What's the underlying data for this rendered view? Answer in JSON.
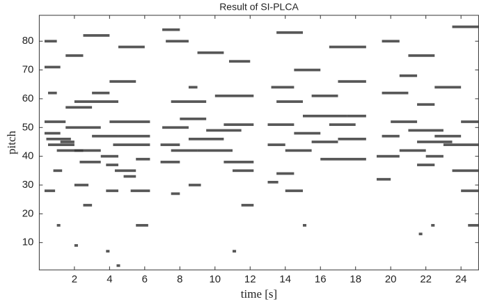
{
  "chart_data": {
    "type": "piano-roll",
    "title": "Result of SI-PLCA",
    "xlabel": "time [s]",
    "ylabel": "pitch",
    "xlim": [
      0,
      25
    ],
    "ylim": [
      0.5,
      89
    ],
    "xticks": [
      2,
      4,
      6,
      8,
      10,
      12,
      14,
      16,
      18,
      20,
      22,
      24
    ],
    "yticks": [
      10,
      20,
      30,
      40,
      50,
      60,
      70,
      80
    ],
    "color": "#3a3a3a",
    "notes": [
      [
        0.3,
        1.5,
        52
      ],
      [
        0.3,
        1.2,
        48
      ],
      [
        0.5,
        2.0,
        44
      ],
      [
        0.4,
        1.8,
        46
      ],
      [
        1.0,
        2.5,
        42
      ],
      [
        1.5,
        3.5,
        50
      ],
      [
        2.0,
        3.5,
        42
      ],
      [
        2.3,
        3.5,
        38
      ],
      [
        0.8,
        1.3,
        35
      ],
      [
        1.2,
        2.0,
        45
      ],
      [
        3.0,
        4.5,
        47
      ],
      [
        3.5,
        4.5,
        40
      ],
      [
        3.8,
        4.5,
        37
      ],
      [
        4.3,
        5.5,
        35
      ],
      [
        4.8,
        5.5,
        33
      ],
      [
        4.0,
        6.3,
        52
      ],
      [
        4.5,
        6.3,
        47
      ],
      [
        4.2,
        6.3,
        44
      ],
      [
        5.5,
        6.3,
        39
      ],
      [
        5.2,
        6.3,
        28
      ],
      [
        2.0,
        2.8,
        30
      ],
      [
        0.3,
        0.9,
        28
      ],
      [
        2.5,
        3.0,
        23
      ],
      [
        3.8,
        4.5,
        28
      ],
      [
        1.5,
        3.0,
        57
      ],
      [
        2.0,
        4.5,
        59
      ],
      [
        3.0,
        4.0,
        62
      ],
      [
        0.5,
        1.0,
        62
      ],
      [
        0.3,
        1.0,
        80
      ],
      [
        1.5,
        2.5,
        75
      ],
      [
        2.5,
        4.0,
        82
      ],
      [
        4.5,
        6.0,
        78
      ],
      [
        0.3,
        1.2,
        71
      ],
      [
        4.0,
        5.5,
        66
      ],
      [
        6.9,
        8.0,
        44
      ],
      [
        6.9,
        8.0,
        38
      ],
      [
        7.0,
        8.5,
        50
      ],
      [
        7.5,
        9.0,
        42
      ],
      [
        8.0,
        9.5,
        53
      ],
      [
        8.5,
        10.5,
        46
      ],
      [
        9.0,
        11.0,
        42
      ],
      [
        9.5,
        11.5,
        49
      ],
      [
        10.5,
        12.2,
        51
      ],
      [
        10.5,
        12.2,
        38
      ],
      [
        11.0,
        12.2,
        35
      ],
      [
        8.5,
        9.2,
        30
      ],
      [
        7.5,
        8.0,
        27
      ],
      [
        11.5,
        12.2,
        23
      ],
      [
        7.5,
        9.5,
        59
      ],
      [
        10.0,
        12.2,
        61
      ],
      [
        8.5,
        9.0,
        64
      ],
      [
        7.2,
        8.5,
        80
      ],
      [
        9.0,
        10.5,
        76
      ],
      [
        10.8,
        12.0,
        73
      ],
      [
        7.0,
        8.0,
        84
      ],
      [
        13.0,
        14.5,
        51
      ],
      [
        13.0,
        14.0,
        44
      ],
      [
        13.0,
        13.6,
        31
      ],
      [
        13.5,
        14.5,
        34
      ],
      [
        14.0,
        15.5,
        42
      ],
      [
        14.5,
        16.0,
        48
      ],
      [
        15.0,
        17.5,
        54
      ],
      [
        15.5,
        17.0,
        45
      ],
      [
        16.0,
        18.6,
        39
      ],
      [
        16.5,
        18.0,
        51
      ],
      [
        17.0,
        18.6,
        46
      ],
      [
        17.5,
        18.6,
        54
      ],
      [
        14.0,
        15.0,
        28
      ],
      [
        13.5,
        15.0,
        59
      ],
      [
        15.5,
        17.0,
        61
      ],
      [
        13.2,
        14.5,
        64
      ],
      [
        14.5,
        16.0,
        70
      ],
      [
        16.5,
        18.6,
        78
      ],
      [
        13.5,
        15.0,
        83
      ],
      [
        17.0,
        18.6,
        66
      ],
      [
        19.2,
        20.0,
        32
      ],
      [
        19.2,
        20.5,
        40
      ],
      [
        19.5,
        20.5,
        47
      ],
      [
        20.0,
        21.5,
        52
      ],
      [
        20.5,
        22.0,
        42
      ],
      [
        21.0,
        23.0,
        49
      ],
      [
        21.5,
        23.5,
        45
      ],
      [
        22.0,
        23.0,
        40
      ],
      [
        22.5,
        24.0,
        47
      ],
      [
        23.0,
        25.0,
        44
      ],
      [
        23.5,
        25.0,
        35
      ],
      [
        24.0,
        25.0,
        52
      ],
      [
        21.5,
        22.5,
        37
      ],
      [
        24.0,
        25.0,
        28
      ],
      [
        21.5,
        22.5,
        58
      ],
      [
        19.5,
        21.0,
        62
      ],
      [
        22.5,
        24.0,
        64
      ],
      [
        19.5,
        20.5,
        80
      ],
      [
        21.0,
        22.5,
        75
      ],
      [
        23.5,
        25.0,
        85
      ],
      [
        20.5,
        21.5,
        68
      ],
      [
        4.4,
        4.6,
        2
      ],
      [
        3.8,
        4.0,
        7
      ],
      [
        11.0,
        11.2,
        7
      ],
      [
        1.0,
        1.2,
        16
      ],
      [
        15.0,
        15.2,
        16
      ],
      [
        22.3,
        22.5,
        16
      ],
      [
        24.4,
        25.0,
        16
      ],
      [
        5.5,
        6.2,
        16
      ],
      [
        2.0,
        2.2,
        9
      ],
      [
        21.6,
        21.8,
        13
      ]
    ]
  }
}
